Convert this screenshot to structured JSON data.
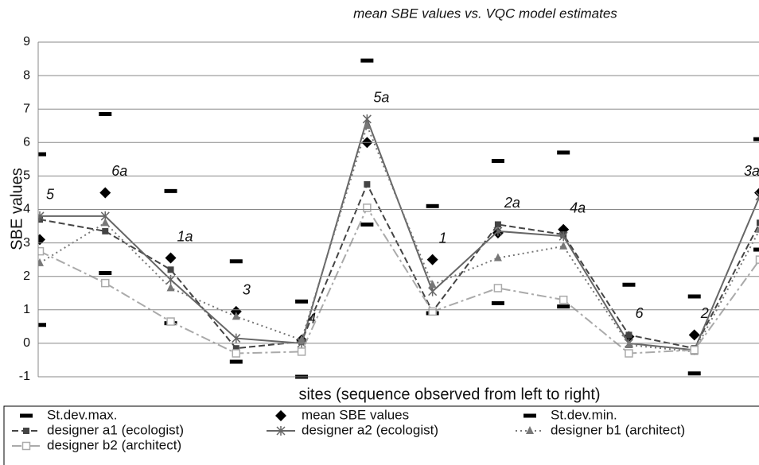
{
  "chart_data": {
    "type": "line",
    "title": "mean SBE values vs. VQC model estimates",
    "ylabel": "SBE values",
    "xlabel": "sites (sequence observed from left to right)",
    "categories": [
      "5",
      "6a",
      "1a",
      "3",
      "4",
      "5a",
      "1",
      "2a",
      "4a",
      "6",
      "2",
      "3a"
    ],
    "ylim": [
      -1,
      9
    ],
    "yticks": [
      -1,
      0,
      1,
      2,
      3,
      4,
      5,
      6,
      7,
      8,
      9
    ],
    "grid": true,
    "series": [
      {
        "name": "St.dev.max.",
        "color": "#000000",
        "line": "none",
        "marker": "dash",
        "values": [
          5.65,
          6.85,
          4.55,
          2.45,
          1.25,
          8.45,
          4.1,
          5.45,
          5.7,
          1.75,
          1.4,
          6.1
        ]
      },
      {
        "name": "mean SBE values",
        "color": "#000000",
        "line": "none",
        "marker": "diamond",
        "values": [
          3.1,
          4.5,
          2.55,
          0.95,
          0.1,
          6.0,
          2.5,
          3.3,
          3.4,
          0.2,
          0.25,
          4.5
        ]
      },
      {
        "name": "St.dev.min.",
        "color": "#000000",
        "line": "none",
        "marker": "dash",
        "values": [
          0.55,
          2.1,
          0.6,
          -0.55,
          -1.0,
          3.55,
          0.9,
          1.2,
          1.1,
          null,
          -0.9,
          2.8
        ]
      },
      {
        "name": "designer a1 (ecologist)",
        "color": "#444444",
        "line": "dashed",
        "marker": "square",
        "values": [
          3.7,
          3.35,
          2.2,
          -0.15,
          0.05,
          4.75,
          0.95,
          3.55,
          3.25,
          0.25,
          -0.15,
          3.6
        ]
      },
      {
        "name": "designer a2 (ecologist)",
        "color": "#666666",
        "line": "solid",
        "marker": "star",
        "values": [
          3.8,
          3.8,
          1.9,
          0.15,
          0.0,
          6.7,
          1.55,
          3.35,
          3.2,
          0.0,
          -0.2,
          4.4
        ]
      },
      {
        "name": "designer b1 (architect)",
        "color": "#777777",
        "line": "dotted",
        "marker": "triangle",
        "values": [
          2.4,
          3.6,
          1.65,
          0.8,
          0.1,
          6.5,
          1.75,
          2.55,
          2.9,
          -0.05,
          -0.25,
          3.4
        ]
      },
      {
        "name": "designer b2 (architect)",
        "color": "#aaaaaa",
        "line": "dashdot",
        "marker": "hollow-square",
        "values": [
          2.75,
          1.8,
          0.65,
          -0.3,
          -0.25,
          4.05,
          0.95,
          1.65,
          1.3,
          -0.3,
          -0.2,
          2.5
        ]
      }
    ]
  }
}
